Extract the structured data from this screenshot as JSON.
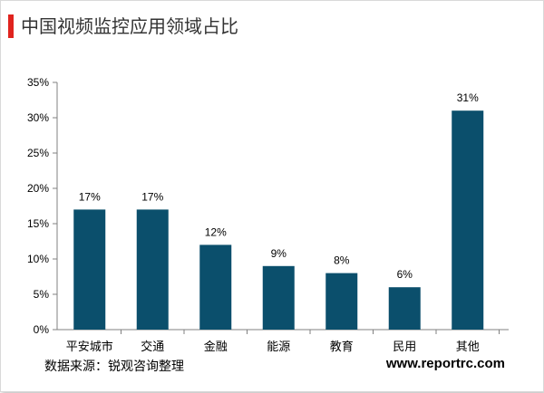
{
  "title": "中国视频监控应用领域占比",
  "accent_color": "#e0231e",
  "bar_color": "#0b4f6c",
  "footer": {
    "source": "数据来源：锐观咨询整理",
    "site": "www.reportrc.com"
  },
  "chart_data": {
    "type": "bar",
    "categories": [
      "平安城市",
      "交通",
      "金融",
      "能源",
      "教育",
      "民用",
      "其他"
    ],
    "values": [
      17,
      17,
      12,
      9,
      8,
      6,
      31
    ],
    "value_labels": [
      "17%",
      "17%",
      "12%",
      "9%",
      "8%",
      "6%",
      "31%"
    ],
    "y_ticks": [
      "0%",
      "5%",
      "10%",
      "15%",
      "20%",
      "25%",
      "30%",
      "35%"
    ],
    "ylim": [
      0,
      35
    ],
    "y_unit": "%",
    "grid": false
  }
}
